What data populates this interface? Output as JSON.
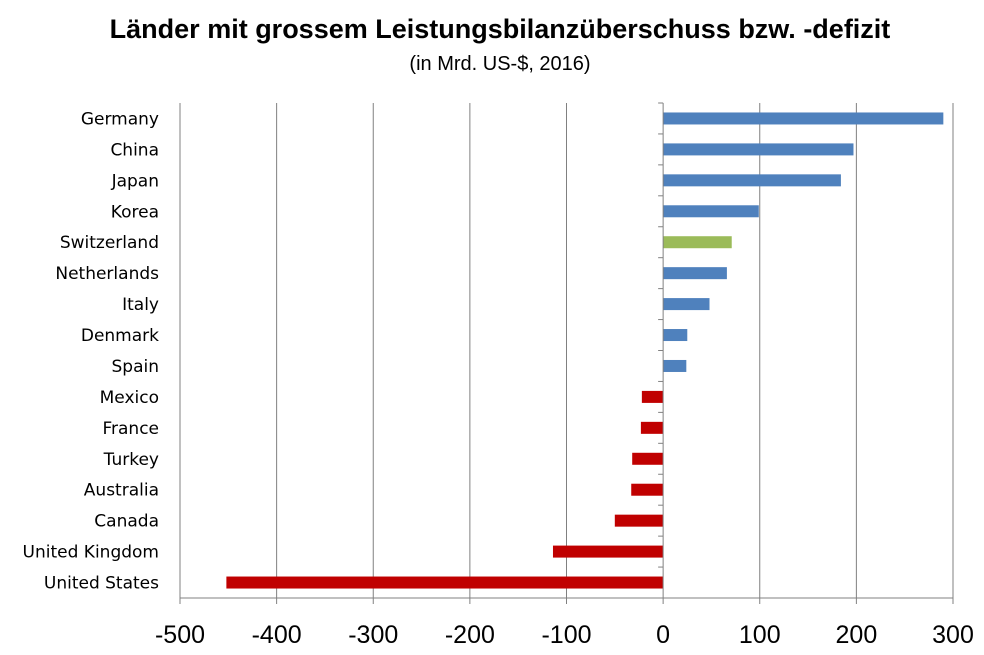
{
  "chart_data": {
    "type": "bar",
    "orientation": "horizontal",
    "title": "Länder mit grossem Leistungsbilanzüberschuss bzw. -defizit",
    "subtitle": "(in Mrd. US-$, 2016)",
    "categories": [
      "Germany",
      "China",
      "Japan",
      "Korea",
      "Switzerland",
      "Netherlands",
      "Italy",
      "Denmark",
      "Spain",
      "Mexico",
      "France",
      "Turkey",
      "Australia",
      "Canada",
      "United Kingdom",
      "United States"
    ],
    "values": [
      290,
      197,
      184,
      99,
      71,
      66,
      48,
      25,
      24,
      -22,
      -23,
      -32,
      -33,
      -50,
      -114,
      -452
    ],
    "bar_colors": [
      "#4f81bd",
      "#4f81bd",
      "#4f81bd",
      "#4f81bd",
      "#9bbb59",
      "#4f81bd",
      "#4f81bd",
      "#4f81bd",
      "#4f81bd",
      "#c00000",
      "#c00000",
      "#c00000",
      "#c00000",
      "#c00000",
      "#c00000",
      "#c00000"
    ],
    "xlim": [
      -500,
      300
    ],
    "xticks": [
      -500,
      -400,
      -300,
      -200,
      -100,
      0,
      100,
      200,
      300
    ],
    "xtick_labels": [
      "-500",
      "-400",
      "-300",
      "-200",
      "-100",
      "0",
      "100",
      "200",
      "300"
    ],
    "grid": "vertical",
    "legend": "none",
    "xlabel": "",
    "ylabel": ""
  }
}
